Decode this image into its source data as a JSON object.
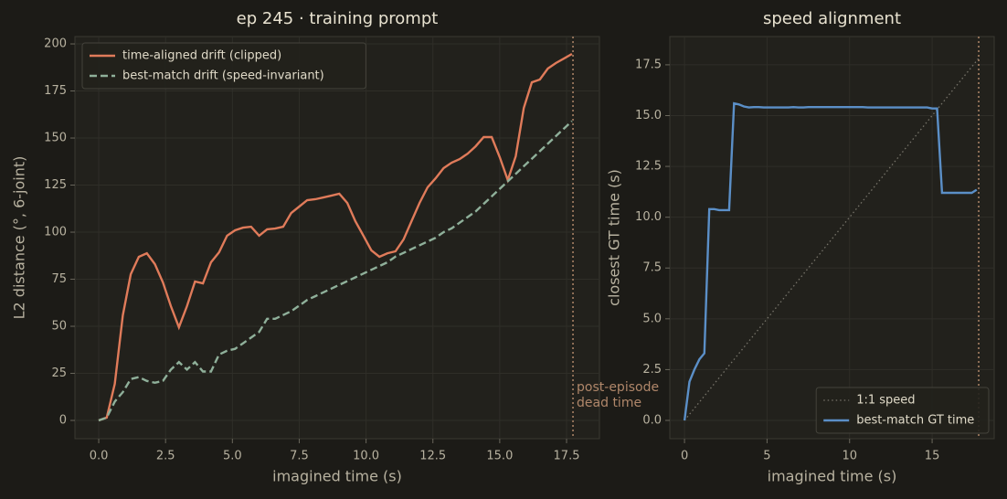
{
  "chart_data": [
    {
      "type": "line",
      "title": "ep 245 · training prompt",
      "xlabel": "imagined time (s)",
      "ylabel": "L2 distance (°, 6-joint)",
      "xlim": [
        -0.89,
        18.73
      ],
      "ylim": [
        -9.7,
        203.9
      ],
      "xticks": [
        {
          "value": 0,
          "label": "0.0"
        },
        2.5,
        {
          "value": 5,
          "label": "5.0"
        },
        7.5,
        {
          "value": 10,
          "label": "10.0"
        },
        12.5,
        {
          "value": 15,
          "label": "15.0"
        },
        17.5
      ],
      "yticks": [
        0,
        25,
        50,
        75,
        100,
        125,
        150,
        175,
        200
      ],
      "grid": true,
      "legend": "upper-left",
      "vline": 17.74,
      "vline_color": "#b0876a",
      "annotation": [
        "post-episode",
        "dead time"
      ],
      "x": [
        0,
        0.3,
        0.6,
        0.9,
        1.2,
        1.5,
        1.8,
        2.1,
        2.4,
        2.7,
        3.0,
        3.3,
        3.6,
        3.9,
        4.2,
        4.5,
        4.8,
        5.1,
        5.4,
        5.7,
        6.0,
        6.3,
        6.6,
        6.9,
        7.2,
        7.5,
        7.8,
        8.1,
        8.4,
        8.7,
        9.0,
        9.3,
        9.6,
        9.9,
        10.2,
        10.5,
        10.8,
        11.1,
        11.4,
        11.7,
        12.0,
        12.3,
        12.6,
        12.9,
        13.2,
        13.5,
        13.8,
        14.1,
        14.4,
        14.7,
        15.0,
        15.3,
        15.6,
        15.9,
        16.2,
        16.5,
        16.8,
        17.1,
        17.4,
        17.7
      ],
      "series": [
        {
          "name": "time-aligned drift (clipped)",
          "color": "#e07b5a",
          "style": "solid",
          "values": [
            0,
            1.5,
            19.4,
            55.8,
            77.7,
            86.9,
            88.8,
            83.0,
            73.3,
            60.7,
            49.5,
            60.7,
            73.8,
            72.8,
            84.0,
            89.3,
            98.1,
            101.0,
            102.4,
            102.9,
            98.1,
            101.5,
            101.9,
            102.9,
            110.2,
            113.6,
            117.0,
            117.5,
            118.4,
            119.4,
            120.4,
            115.5,
            105.8,
            98.1,
            90.3,
            86.9,
            88.8,
            89.8,
            96.1,
            105.8,
            115.5,
            123.8,
            128.6,
            134.0,
            136.9,
            138.8,
            141.7,
            145.6,
            150.5,
            150.5,
            139.8,
            127.7,
            140.3,
            166.0,
            179.6,
            181.1,
            186.9,
            189.8,
            192.2,
            194.7
          ]
        },
        {
          "name": "best-match drift (speed-invariant)",
          "color": "#8fb09a",
          "style": "dashed",
          "values": [
            0,
            1.5,
            10,
            15,
            22,
            23,
            21,
            20,
            21,
            27,
            31,
            27,
            31,
            26,
            26,
            35,
            37,
            38,
            41,
            44,
            47,
            54,
            54,
            56,
            58,
            61,
            64,
            66,
            68,
            70,
            72,
            74,
            76,
            78,
            80,
            82,
            84,
            87,
            89,
            91,
            93,
            95,
            97,
            100,
            102,
            105,
            108,
            111,
            115,
            119,
            123,
            127,
            131,
            135,
            139,
            143,
            147,
            151,
            155,
            159
          ]
        }
      ]
    },
    {
      "type": "line",
      "title": "speed alignment",
      "xlabel": "imagined time (s)",
      "ylabel": "closest GT time (s)",
      "xlim": [
        -0.89,
        18.76
      ],
      "ylim": [
        -0.9,
        18.89
      ],
      "xticks": [
        0,
        5,
        10,
        15
      ],
      "yticks": [
        {
          "value": 0,
          "label": "0.0"
        },
        2.5,
        {
          "value": 5,
          "label": "5.0"
        },
        7.5,
        {
          "value": 10,
          "label": "10.0"
        },
        12.5,
        {
          "value": 15,
          "label": "15.0"
        },
        17.5
      ],
      "grid": true,
      "legend": "lower-right",
      "vline": 17.82,
      "vline_color": "#b0876a",
      "x": [
        0,
        0.3,
        0.6,
        0.9,
        1.2,
        1.5,
        1.8,
        2.1,
        2.4,
        2.7,
        3.0,
        3.3,
        3.6,
        3.9,
        4.2,
        4.5,
        4.8,
        5.1,
        5.4,
        5.7,
        6.0,
        6.3,
        6.6,
        6.9,
        7.2,
        7.5,
        7.8,
        8.1,
        8.4,
        8.7,
        9.0,
        9.3,
        9.6,
        9.9,
        10.2,
        10.5,
        10.8,
        11.1,
        11.4,
        11.7,
        12.0,
        12.3,
        12.6,
        12.9,
        13.2,
        13.5,
        13.8,
        14.1,
        14.4,
        14.7,
        15.0,
        15.3,
        15.6,
        15.9,
        16.2,
        16.5,
        16.8,
        17.1,
        17.4,
        17.7
      ],
      "series": [
        {
          "name": "1:1 speed",
          "color": "#77746a",
          "style": "dotted",
          "x": [
            0,
            17.82
          ],
          "values": [
            0,
            17.82
          ]
        },
        {
          "name": "best-match GT time",
          "color": "#5b8fc7",
          "style": "solid",
          "values": [
            0,
            1.9,
            2.5,
            3.0,
            3.3,
            10.4,
            10.4,
            10.35,
            10.35,
            10.35,
            15.6,
            15.55,
            15.45,
            15.4,
            15.42,
            15.42,
            15.4,
            15.4,
            15.4,
            15.4,
            15.4,
            15.4,
            15.42,
            15.4,
            15.4,
            15.42,
            15.42,
            15.42,
            15.42,
            15.42,
            15.42,
            15.42,
            15.42,
            15.42,
            15.42,
            15.42,
            15.42,
            15.4,
            15.4,
            15.4,
            15.4,
            15.4,
            15.4,
            15.4,
            15.4,
            15.4,
            15.4,
            15.4,
            15.4,
            15.4,
            15.35,
            15.35,
            11.2,
            11.2,
            11.2,
            11.2,
            11.2,
            11.2,
            11.2,
            11.35
          ]
        }
      ]
    }
  ]
}
